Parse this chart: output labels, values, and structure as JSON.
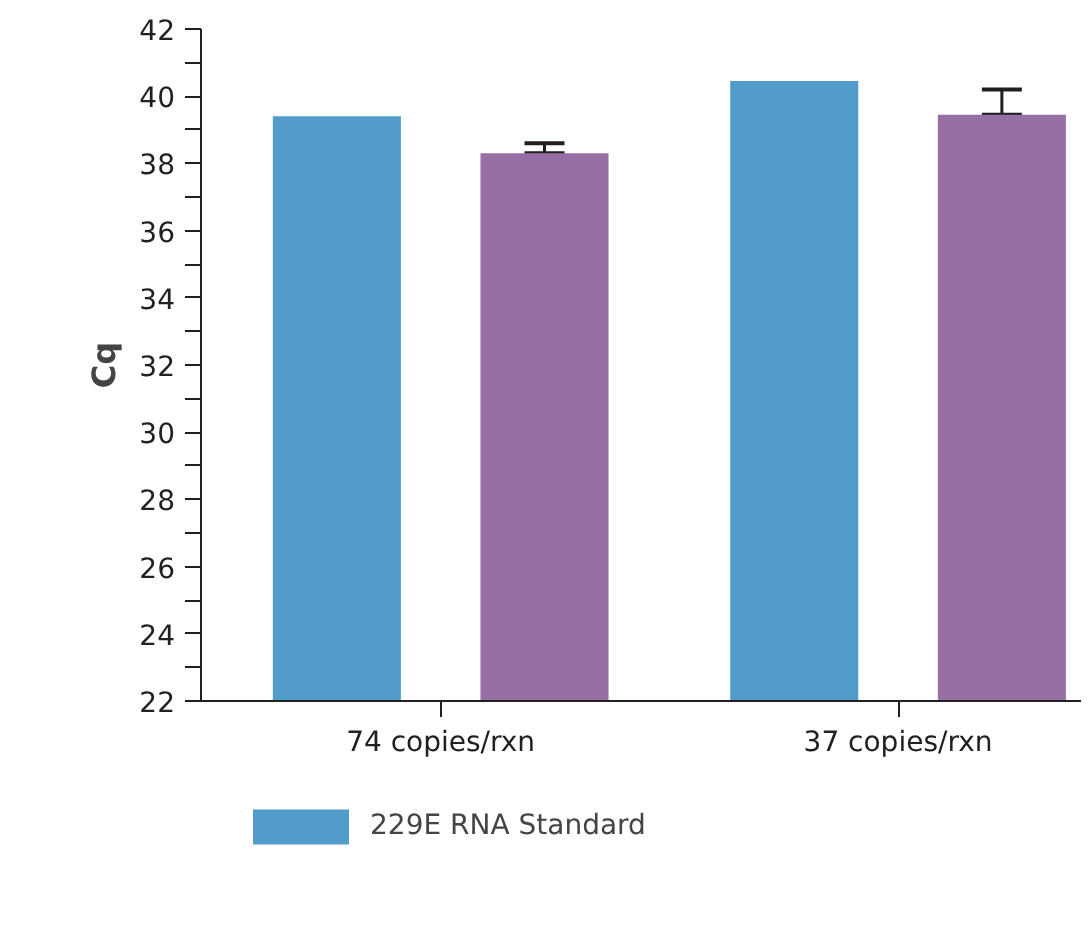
{
  "chart_data": {
    "type": "bar",
    "ylabel": "Cq",
    "categories": [
      "74 copies/rxn",
      "37 copies/rxn"
    ],
    "series": [
      {
        "name": "229E RNA Standard",
        "color": "#519cc9",
        "values": [
          39.4,
          40.45
        ]
      },
      {
        "color": "#9670a5",
        "values": [
          38.3,
          39.45
        ],
        "errors": [
          [
            38.3,
            38.6
          ],
          [
            39.45,
            40.2
          ]
        ]
      }
    ],
    "ylim": [
      22,
      42
    ],
    "yticks": [
      22,
      {
        "value": 23,
        "label": null
      },
      24,
      {
        "value": 25,
        "label": null
      },
      26,
      {
        "value": 27,
        "label": null
      },
      28,
      {
        "value": 29,
        "label": null
      },
      30,
      {
        "value": 31,
        "label": null
      },
      32,
      {
        "value": 33,
        "label": null
      },
      34,
      {
        "value": 35,
        "label": null
      },
      36,
      {
        "value": 37,
        "label": null
      },
      38,
      {
        "value": 39,
        "label": null
      },
      40,
      {
        "value": 41,
        "label": null
      },
      42
    ],
    "grid": false,
    "legend": "bottom"
  }
}
